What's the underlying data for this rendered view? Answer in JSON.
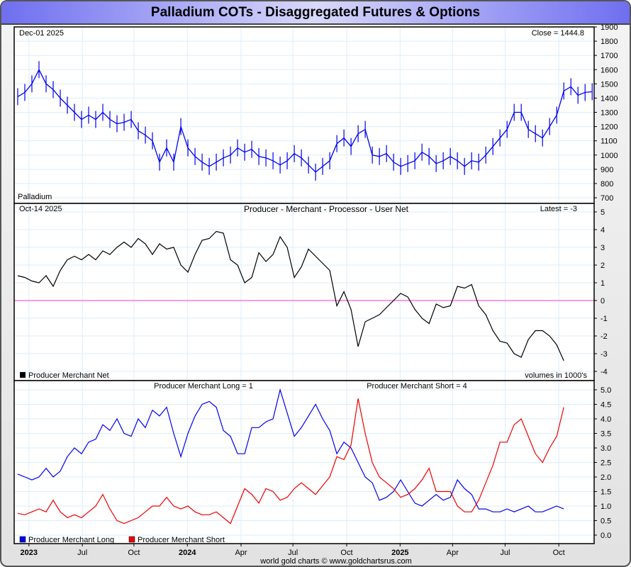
{
  "title": "Palladium COTs - Disaggregated Futures & Options",
  "footer": "world gold charts © www.goldchartsrus.com",
  "x_axis": {
    "unit": "weeks",
    "range": [
      0,
      188.9
    ],
    "ticks": [
      {
        "w": 4.8,
        "label": "2023",
        "bold": true
      },
      {
        "w": 22.2,
        "label": "Jul"
      },
      {
        "w": 39,
        "label": "Oct"
      },
      {
        "w": 56.4,
        "label": "2024",
        "bold": true
      },
      {
        "w": 73.9,
        "label": "Apr"
      },
      {
        "w": 90.8,
        "label": "Jul"
      },
      {
        "w": 108.3,
        "label": "Oct"
      },
      {
        "w": 125.7,
        "label": "2025",
        "bold": true
      },
      {
        "w": 142.8,
        "label": "Apr"
      },
      {
        "w": 159.9,
        "label": "Jul"
      },
      {
        "w": 177.4,
        "label": "Oct"
      }
    ]
  },
  "chart_data": [
    {
      "type": "line",
      "name": "Palladium",
      "date_label": "Dec-01  2025",
      "close_label": "Close = 1444.8",
      "ylim": [
        700,
        1900
      ],
      "yticks": [
        700,
        800,
        900,
        1000,
        1100,
        1200,
        1300,
        1400,
        1500,
        1600,
        1700,
        1800,
        1900
      ],
      "x_start": 1.15,
      "x_step": 2.31,
      "color": "#0000ee",
      "values": [
        1410,
        1440,
        1500,
        1600,
        1500,
        1460,
        1400,
        1350,
        1300,
        1250,
        1280,
        1250,
        1300,
        1250,
        1220,
        1230,
        1250,
        1170,
        1140,
        1100,
        950,
        1050,
        950,
        1200,
        1050,
        990,
        950,
        920,
        950,
        980,
        1000,
        1050,
        1020,
        1040,
        990,
        980,
        960,
        930,
        960,
        1010,
        980,
        930,
        880,
        920,
        960,
        1080,
        1120,
        1060,
        1150,
        1180,
        1000,
        990,
        1010,
        950,
        920,
        940,
        960,
        1020,
        990,
        940,
        960,
        990,
        960,
        920,
        960,
        950,
        1000,
        1060,
        1120,
        1180,
        1300,
        1300,
        1180,
        1150,
        1120,
        1200,
        1280,
        1450,
        1480,
        1420,
        1440,
        1444.8
      ]
    },
    {
      "type": "line",
      "title": "Producer - Merchant - Processor - User Net",
      "date_label": "Oct-14  2025",
      "latest_label": "Latest = -3",
      "legend": "Producer Merchant Net",
      "units_label": "volumes in 1000's",
      "ylim": [
        -4,
        5
      ],
      "yticks": [
        -4,
        -3,
        -2,
        -1,
        0,
        1,
        2,
        3,
        4,
        5
      ],
      "zero_color": "#ff33cc",
      "x_start": 1.15,
      "x_step": 2.31,
      "color": "#000000",
      "values": [
        1.4,
        1.3,
        1.1,
        1.0,
        1.4,
        0.8,
        1.7,
        2.3,
        2.5,
        2.3,
        2.6,
        2.3,
        2.8,
        2.6,
        3.0,
        3.3,
        3.0,
        3.5,
        3.2,
        2.6,
        3.2,
        2.9,
        3.0,
        2.0,
        1.6,
        2.6,
        3.4,
        3.5,
        3.9,
        3.8,
        2.3,
        2.0,
        1.0,
        1.3,
        2.7,
        2.2,
        2.6,
        3.6,
        3.0,
        1.3,
        1.9,
        2.9,
        2.5,
        2.1,
        1.7,
        -0.3,
        0.5,
        -0.5,
        -2.6,
        -1.2,
        -1.0,
        -0.8,
        -0.4,
        0.0,
        0.4,
        0.2,
        -0.5,
        -1.0,
        -1.3,
        -0.2,
        -0.4,
        -0.3,
        0.8,
        0.7,
        0.9,
        -0.3,
        -0.8,
        -1.7,
        -2.3,
        -2.4,
        -3.0,
        -3.2,
        -2.2,
        -1.7,
        -1.7,
        -2.0,
        -2.5,
        -3.4
      ]
    },
    {
      "type": "line",
      "ylim": [
        0,
        5
      ],
      "yticks": [
        0.0,
        0.5,
        1.0,
        1.5,
        2.0,
        2.5,
        3.0,
        3.5,
        4.0,
        4.5,
        5.0
      ],
      "x_start": 1.15,
      "x_step": 2.31,
      "series": [
        {
          "name": "Producer Merchant Long",
          "header": "Producer Merchant Long = 1",
          "color": "#0000ee",
          "values": [
            2.1,
            2.0,
            1.9,
            2.0,
            2.3,
            2.0,
            2.2,
            2.7,
            3.0,
            2.8,
            3.2,
            3.3,
            3.8,
            3.6,
            4.0,
            3.5,
            3.4,
            4.0,
            3.7,
            4.3,
            4.1,
            4.4,
            3.5,
            2.7,
            3.5,
            4.1,
            4.5,
            4.6,
            4.4,
            3.6,
            3.4,
            2.8,
            2.8,
            3.7,
            3.7,
            3.9,
            4.0,
            5.0,
            4.2,
            3.4,
            3.7,
            4.1,
            4.5,
            4.0,
            3.6,
            2.8,
            3.2,
            3.0,
            2.5,
            2.0,
            1.8,
            1.2,
            1.3,
            1.5,
            1.9,
            1.5,
            1.1,
            1.0,
            1.2,
            1.4,
            1.2,
            1.3,
            1.9,
            1.6,
            1.4,
            0.9,
            0.9,
            0.8,
            0.8,
            0.9,
            0.8,
            0.9,
            1.0,
            0.8,
            0.8,
            0.9,
            1.0,
            0.9
          ]
        },
        {
          "name": "Producer Merchant Short",
          "header": "Producer Merchant Short = 4",
          "color": "#ee0000",
          "values": [
            0.75,
            0.7,
            0.8,
            0.9,
            0.8,
            1.2,
            0.8,
            0.6,
            0.7,
            0.6,
            0.8,
            1.0,
            1.4,
            0.9,
            0.5,
            0.4,
            0.5,
            0.6,
            0.8,
            1.0,
            1.0,
            1.3,
            1.0,
            0.9,
            1.0,
            0.8,
            0.7,
            0.7,
            0.8,
            0.6,
            0.4,
            1.0,
            1.6,
            1.4,
            1.1,
            1.6,
            1.5,
            1.2,
            1.3,
            1.6,
            1.8,
            1.6,
            1.4,
            1.7,
            2.0,
            2.7,
            2.6,
            3.1,
            4.7,
            3.5,
            2.5,
            2.0,
            1.8,
            1.6,
            1.3,
            1.4,
            1.6,
            1.9,
            2.3,
            1.5,
            1.5,
            1.5,
            1.0,
            0.8,
            0.8,
            1.2,
            1.8,
            2.4,
            3.2,
            3.2,
            3.8,
            4.0,
            3.4,
            2.8,
            2.5,
            3.0,
            3.4,
            4.4
          ]
        }
      ]
    }
  ]
}
